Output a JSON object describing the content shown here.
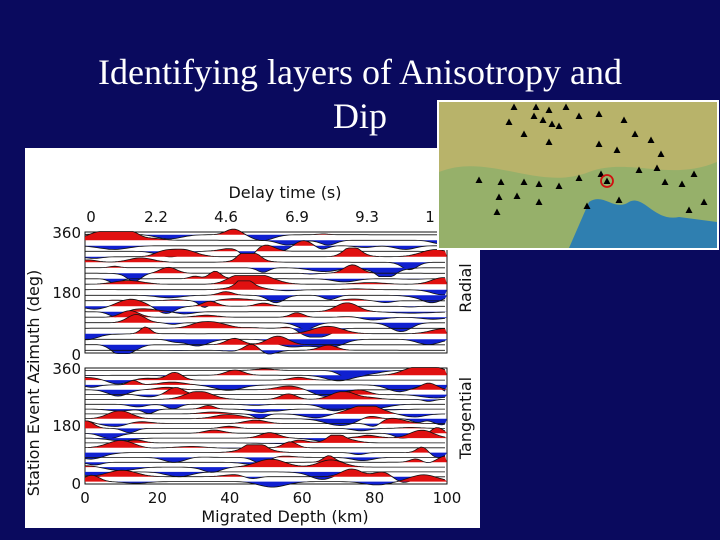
{
  "slide": {
    "title_line1": "Identifying layers of Anisotropy and",
    "title_line2": "Dip"
  },
  "figure": {
    "top_axis_label": "Delay time (s)",
    "top_ticks": [
      "0",
      "2.2",
      "4.6",
      "6.9",
      "9.3",
      "1"
    ],
    "bottom_axis_label": "Migrated Depth (km)",
    "bottom_ticks": [
      "0",
      "20",
      "40",
      "60",
      "80",
      "100"
    ],
    "y_axis_label": "Station Event Azimuth (deg)",
    "radial_ticks": [
      "360",
      "180",
      "0"
    ],
    "tangential_ticks": [
      "360",
      "180",
      "0"
    ],
    "panel_radial_label": "Radial",
    "panel_tangential_label": "Tangential",
    "positive_color": "#e01010",
    "negative_color": "#1020d0"
  },
  "map": {
    "station_icon": "triangle-icon",
    "event_marker_icon": "circled-triangle-icon",
    "terrain_colors": [
      "#b8b36a",
      "#7fae6a",
      "#2f7fb0"
    ]
  }
}
